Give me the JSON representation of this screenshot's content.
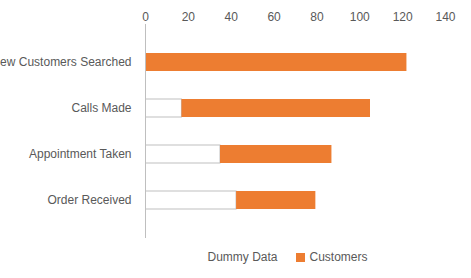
{
  "chart_data": {
    "type": "bar",
    "orientation": "horizontal",
    "stacked": true,
    "categories": [
      "New Customers Searched",
      "Calls Made",
      "Appointment Taken",
      "Order Received"
    ],
    "series": [
      {
        "name": "Dummy Data",
        "color": "none",
        "values": [
          0,
          17,
          35,
          42.5
        ]
      },
      {
        "name": "Customers",
        "color": "#ed7d31",
        "values": [
          122,
          88,
          52,
          37
        ]
      }
    ],
    "xlim": [
      0,
      140
    ],
    "xticks": [
      0,
      20,
      40,
      60,
      80,
      100,
      120,
      140
    ],
    "grid": false,
    "legend": "bottom"
  }
}
